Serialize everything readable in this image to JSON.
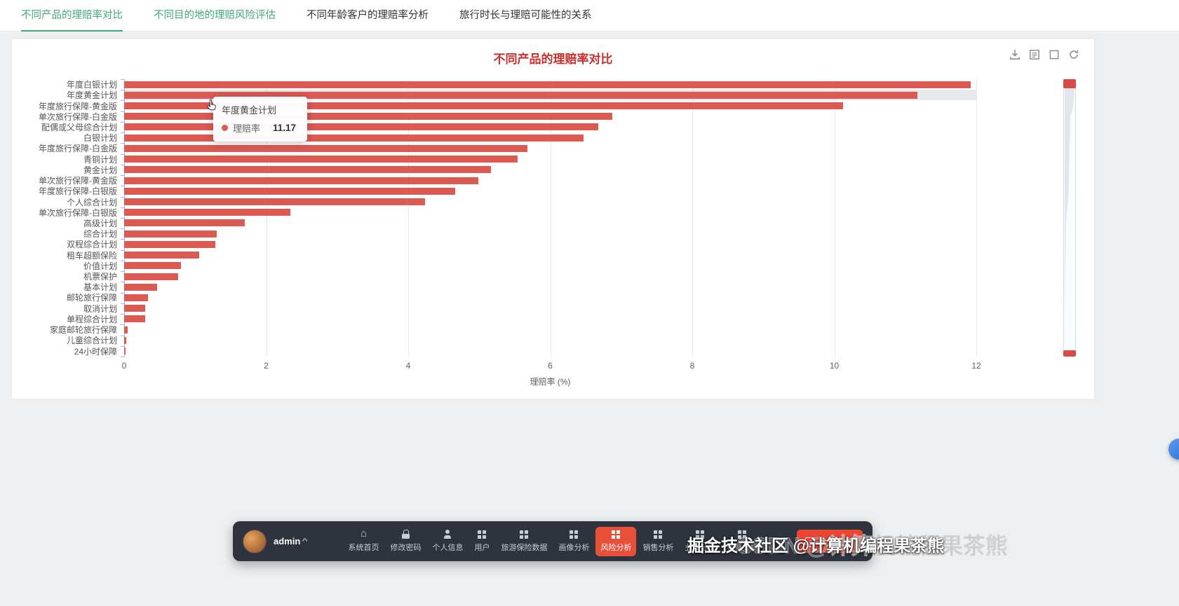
{
  "tabs": {
    "items": [
      {
        "label": "不同产品的理赔率对比",
        "active": true
      },
      {
        "label": "不同目的地的理赔风险评估",
        "active": false
      },
      {
        "label": "不同年龄客户的理赔率分析",
        "active": false
      },
      {
        "label": "旅行时长与理赔可能性的关系",
        "active": false
      }
    ]
  },
  "chart": {
    "title": "不同产品的理赔率对比",
    "tooltip": {
      "title": "年度黄金计划",
      "series": "理赔率",
      "value": "11.17"
    }
  },
  "chart_data": {
    "type": "bar",
    "orientation": "horizontal",
    "title": "不同产品的理赔率对比",
    "xlabel": "理赔率 (%)",
    "ylabel": "",
    "xlim": [
      0,
      12
    ],
    "xticks": [
      0,
      2,
      4,
      6,
      8,
      10,
      12
    ],
    "grid": true,
    "highlight_index": 1,
    "categories": [
      "年度白银计划",
      "年度黄金计划",
      "年度旅行保障-黄金版",
      "单次旅行保障-白金版",
      "配偶或父母综合计划",
      "白银计划",
      "年度旅行保障-白金版",
      "青铜计划",
      "黄金计划",
      "单次旅行保障-黄金版",
      "年度旅行保障-白银版",
      "个人综合计划",
      "单次旅行保障-白银版",
      "高级计划",
      "综合计划",
      "双程综合计划",
      "租车超额保险",
      "价值计划",
      "机票保护",
      "基本计划",
      "邮轮旅行保障",
      "取消计划",
      "单程综合计划",
      "家庭邮轮旅行保障",
      "儿童综合计划",
      "24小时保障"
    ],
    "values": [
      11.92,
      11.17,
      10.12,
      6.87,
      6.68,
      6.47,
      5.68,
      5.54,
      5.17,
      4.99,
      4.66,
      4.24,
      2.34,
      1.7,
      1.3,
      1.28,
      1.06,
      0.8,
      0.76,
      0.46,
      0.34,
      0.3,
      0.3,
      0.05,
      0.03,
      0.02
    ]
  },
  "toolbox": {
    "icons": [
      "download-icon",
      "data-view-icon",
      "box-select-icon",
      "refresh-icon"
    ]
  },
  "nav": {
    "user": {
      "name": "admin",
      "caret": "^"
    },
    "items": [
      {
        "key": "home",
        "label": "系统首页",
        "icon": "home"
      },
      {
        "key": "change-password",
        "label": "修改密码",
        "icon": "lock"
      },
      {
        "key": "profile",
        "label": "个人信息",
        "icon": "user"
      },
      {
        "key": "users",
        "label": "用户",
        "icon": "grid"
      },
      {
        "key": "travel-insurance-data",
        "label": "旅游保险数据",
        "icon": "grid"
      },
      {
        "key": "portrait-analysis",
        "label": "画像分析",
        "icon": "grid"
      },
      {
        "key": "risk-analysis",
        "label": "风险分析",
        "icon": "grid",
        "active": true
      },
      {
        "key": "sales-analysis",
        "label": "销售分析",
        "icon": "grid"
      },
      {
        "key": "performance-analysis",
        "label": "业绩分析",
        "icon": "grid"
      },
      {
        "key": "feature-analysis",
        "label": "特征分析",
        "icon": "grid"
      }
    ],
    "screen_button": {
      "label": "大屏分析"
    }
  },
  "watermark": {
    "front": "掘金技术社区 @计算机编程果茶熊",
    "back": "CSDN @计算机编程果茶熊"
  },
  "icons": {
    "home": "⌂"
  },
  "colors": {
    "bar": "#dc5a52",
    "title": "#c9302c",
    "tab_active": "#42a874",
    "nav_active_bg": "#e8503a",
    "button_red": "#ee4433",
    "highlight_band": "rgba(120,130,150,0.18)"
  }
}
